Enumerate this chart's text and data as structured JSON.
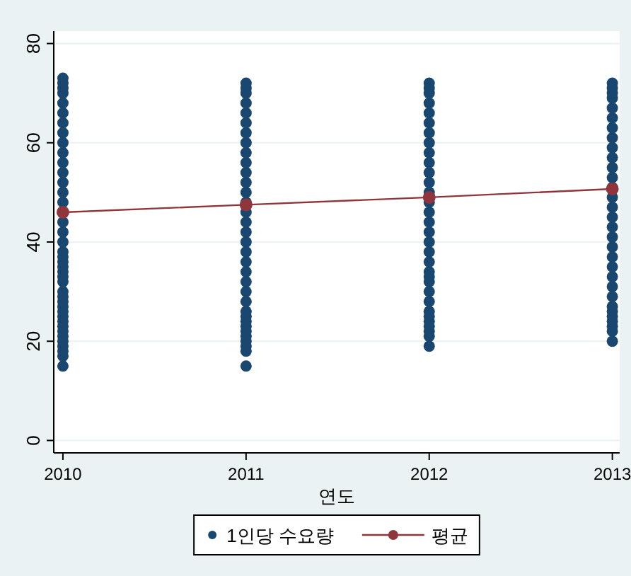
{
  "chart_data": {
    "type": "scatter",
    "xlabel": "연도",
    "xlim": [
      2009.95,
      2013.04
    ],
    "xticks": [
      2010,
      2011,
      2012,
      2013
    ],
    "ylim": [
      -2.5,
      82.5
    ],
    "yticks": [
      0,
      20,
      40,
      60,
      80
    ],
    "grid": "y",
    "legend": "bottom",
    "marker": "circle",
    "series": [
      {
        "name": "1인당 수요량",
        "color": "#1a476f",
        "x": [
          2010,
          2010,
          2010,
          2010,
          2010,
          2010,
          2010,
          2010,
          2010,
          2010,
          2010,
          2010,
          2010,
          2010,
          2010,
          2010,
          2010,
          2010,
          2010,
          2010,
          2010,
          2010,
          2010,
          2010,
          2010,
          2010,
          2010,
          2010,
          2010,
          2010,
          2010,
          2010,
          2010,
          2010,
          2010,
          2010,
          2010,
          2010,
          2010,
          2010,
          2011,
          2011,
          2011,
          2011,
          2011,
          2011,
          2011,
          2011,
          2011,
          2011,
          2011,
          2011,
          2011,
          2011,
          2011,
          2011,
          2011,
          2011,
          2011,
          2011,
          2011,
          2011,
          2011,
          2011,
          2011,
          2011,
          2011,
          2011,
          2011,
          2011,
          2011,
          2011,
          2011,
          2011,
          2012,
          2012,
          2012,
          2012,
          2012,
          2012,
          2012,
          2012,
          2012,
          2012,
          2012,
          2012,
          2012,
          2012,
          2012,
          2012,
          2012,
          2012,
          2012,
          2012,
          2012,
          2012,
          2012,
          2012,
          2012,
          2012,
          2012,
          2012,
          2012,
          2012,
          2012,
          2012,
          2013,
          2013,
          2013,
          2013,
          2013,
          2013,
          2013,
          2013,
          2013,
          2013,
          2013,
          2013,
          2013,
          2013,
          2013,
          2013,
          2013,
          2013,
          2013,
          2013,
          2013,
          2013,
          2013,
          2013,
          2013,
          2013,
          2013,
          2013,
          2013,
          2013,
          2013
        ],
        "values": [
          15,
          17,
          18,
          19,
          20,
          21,
          22,
          23,
          24,
          25,
          26,
          27,
          28,
          29,
          30,
          32,
          33,
          34,
          35,
          36,
          37,
          38,
          40,
          42,
          44,
          48,
          50,
          52,
          54,
          56,
          58,
          60,
          62,
          64,
          66,
          68,
          70,
          71,
          72,
          73,
          15,
          18,
          19,
          20,
          21,
          22,
          23,
          24,
          25,
          26,
          28,
          30,
          32,
          34,
          36,
          38,
          40,
          42,
          44,
          46,
          48,
          50,
          52,
          54,
          56,
          58,
          60,
          62,
          64,
          66,
          68,
          70,
          71,
          72,
          19,
          21,
          22,
          23,
          24,
          25,
          26,
          28,
          30,
          32,
          33,
          34,
          36,
          38,
          40,
          42,
          44,
          46,
          48,
          50,
          52,
          54,
          56,
          58,
          60,
          62,
          64,
          66,
          68,
          70,
          71,
          72,
          20,
          22,
          23,
          24,
          25,
          26,
          27,
          29,
          31,
          33,
          35,
          37,
          39,
          41,
          43,
          45,
          47,
          49,
          51,
          53,
          55,
          57,
          59,
          61,
          63,
          65,
          67,
          69,
          70,
          71,
          72
        ]
      },
      {
        "name": "평균",
        "type": "line",
        "color": "#90353b",
        "line_style": "solid",
        "x": [
          2010,
          2011,
          2012,
          2013
        ],
        "values": [
          46,
          47.5,
          49,
          50.7
        ]
      }
    ]
  }
}
